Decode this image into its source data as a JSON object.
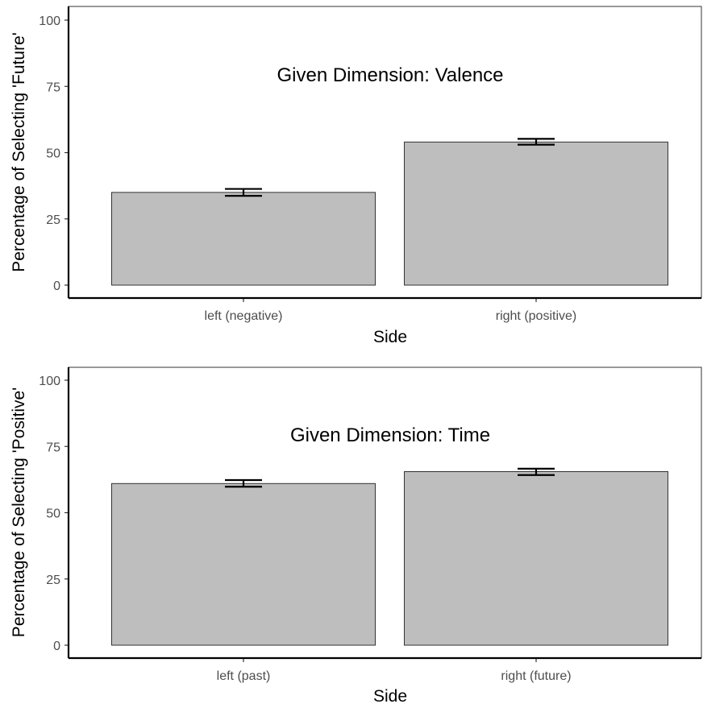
{
  "chart_data": [
    {
      "type": "bar",
      "title": "Given Dimension: Valence",
      "xlabel": "Side",
      "ylabel": "Percentage of Selecting 'Future'",
      "categories": [
        "left (negative)",
        "right (positive)"
      ],
      "values": [
        35,
        54
      ],
      "error_low": [
        33.7,
        53.0
      ],
      "error_high": [
        36.3,
        55.2
      ],
      "ylim": [
        0,
        100
      ],
      "yticks": [
        "0",
        "25",
        "50",
        "75",
        "100"
      ],
      "grid": false,
      "bar_color": "#bebebe"
    },
    {
      "type": "bar",
      "title": "Given Dimension: Time",
      "xlabel": "Side",
      "ylabel": "Percentage of Selecting 'Positive'",
      "categories": [
        "left (past)",
        "right (future)"
      ],
      "values": [
        61,
        65.5
      ],
      "error_low": [
        59.8,
        64.2
      ],
      "error_high": [
        62.3,
        66.6
      ],
      "ylim": [
        0,
        100
      ],
      "yticks": [
        "0",
        "25",
        "50",
        "75",
        "100"
      ],
      "grid": false,
      "bar_color": "#bebebe"
    }
  ]
}
